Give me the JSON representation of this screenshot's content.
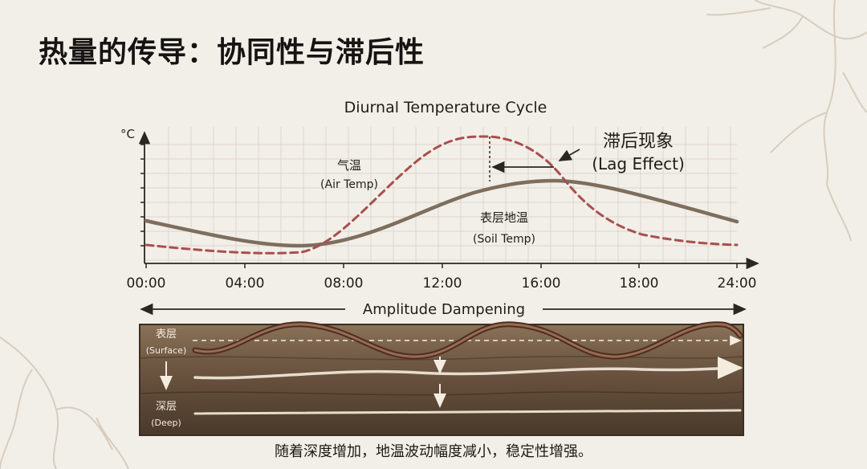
{
  "title": "热量的传导：协同性与滞后性",
  "chart": {
    "title": "Diurnal Temperature Cycle",
    "ylabel": "°C",
    "xticks": [
      "00:00",
      "04:00",
      "08:00",
      "12:00",
      "16:00",
      "18:00",
      "24:00"
    ],
    "air_label_cn": "气温",
    "air_label_en": "(Air Temp)",
    "soil_label_cn": "表层地温",
    "soil_label_en": "(Soil Temp)",
    "lag_label_cn": "滞后现象",
    "lag_label_en": "(Lag Effect)",
    "colors": {
      "air": "#a84f4f",
      "soil": "#7d6e5e",
      "grid": "#ddd6cc"
    }
  },
  "chart_data": {
    "type": "line",
    "title": "Diurnal Temperature Cycle",
    "ylabel": "°C",
    "x_tick_labels": [
      "00:00",
      "04:00",
      "08:00",
      "12:00",
      "16:00",
      "18:00",
      "24:00"
    ],
    "series": [
      {
        "name": "气温 (Air Temp)",
        "style": "dashed",
        "peak_time": "14:00"
      },
      {
        "name": "表层地温 (Soil Temp)",
        "style": "solid",
        "peak_time": "16:00"
      }
    ],
    "annotations": [
      "滞后现象 (Lag Effect)"
    ]
  },
  "soil": {
    "banner": "Amplitude Dampening",
    "surface_cn": "表层",
    "surface_en": "(Surface)",
    "deep_cn": "深层",
    "deep_en": "(Deep)"
  },
  "caption": "随着深度增加，地温波动幅度减小，稳定性增强。"
}
